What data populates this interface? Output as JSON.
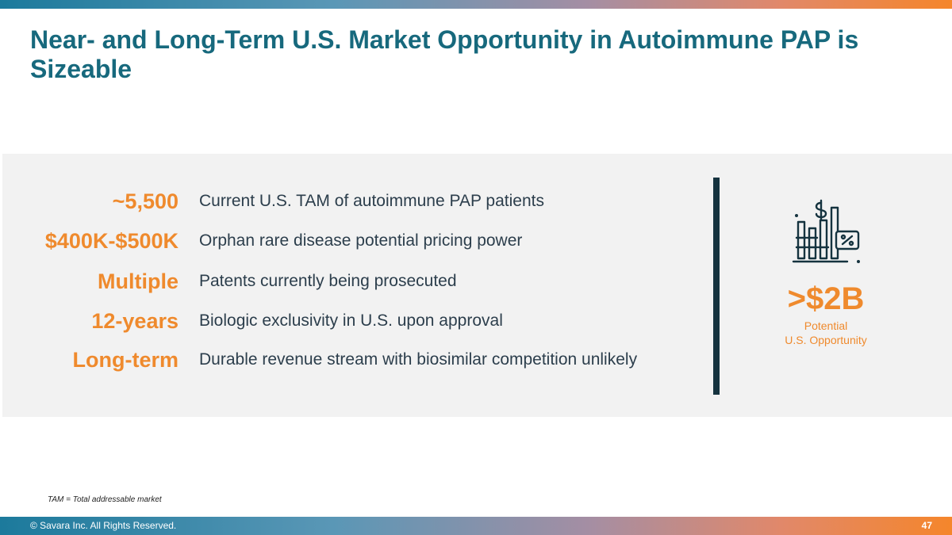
{
  "slide": {
    "title": "Near- and Long-Term U.S. Market Opportunity in Autoimmune PAP is Sizeable",
    "metrics": [
      {
        "value": "~5,500",
        "description": "Current U.S. TAM of autoimmune PAP patients"
      },
      {
        "value": "$400K-$500K",
        "description": "Orphan rare disease potential pricing power"
      },
      {
        "value": "Multiple",
        "description": "Patents currently being prosecuted"
      },
      {
        "value": "12-years",
        "description": "Biologic exclusivity in U.S. upon approval"
      },
      {
        "value": "Long-term",
        "description": "Durable revenue stream with biosimilar competition unlikely"
      }
    ],
    "opportunity": {
      "icon": "revenue-chart-icon",
      "figure": ">$2B",
      "caption_line1": "Potential",
      "caption_line2": "U.S. Opportunity"
    },
    "footnote": "TAM = Total addressable market"
  },
  "footer": {
    "copyright": "© Savara Inc. All Rights Reserved.",
    "page_number": "47"
  },
  "colors": {
    "title": "#17697d",
    "accent": "#ef8a2d",
    "body_text": "#2c3e4c",
    "panel_background": "#f2f2f2",
    "divider": "#15333f"
  }
}
